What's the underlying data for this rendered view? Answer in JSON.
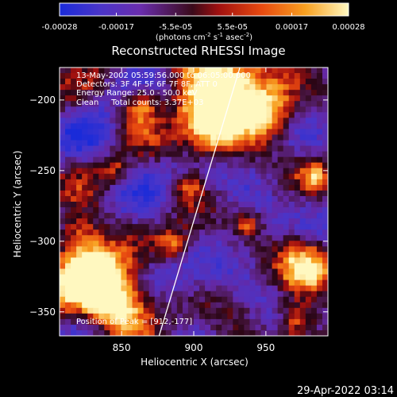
{
  "colorbar": {
    "ticks": [
      {
        "label": "-0.00028",
        "value": -0.00028
      },
      {
        "label": "-0.00017",
        "value": -0.00017
      },
      {
        "label": "-5.5e-05",
        "value": -5.5e-05
      },
      {
        "label": "5.5e-05",
        "value": 5.5e-05
      },
      {
        "label": "0.00017",
        "value": 0.00017
      },
      {
        "label": "0.00028",
        "value": 0.00028
      }
    ],
    "units_text": "(photons cm",
    "units_exp1": "-2",
    "units_mid": " s",
    "units_exp2": "-1",
    "units_end": " asec",
    "units_exp3": "-2",
    "units_close": ")",
    "range": [
      -0.00028,
      0.00028
    ],
    "colors": [
      "#1a2bd9",
      "#4a35c9",
      "#6a2dad",
      "#3a0a1a",
      "#a01010",
      "#e84a10",
      "#f8a020",
      "#fff8c0"
    ]
  },
  "chart_data": {
    "type": "heatmap",
    "title": "Reconstructed RHESSI Image",
    "xlabel": "Heliocentric X (arcsec)",
    "ylabel": "Heliocentric Y (arcsec)",
    "xlim": [
      807,
      993
    ],
    "ylim": [
      -367,
      -177
    ],
    "xticks": [
      {
        "label": "850",
        "value": 850
      },
      {
        "label": "900",
        "value": 900
      },
      {
        "label": "950",
        "value": 950
      }
    ],
    "yticks": [
      {
        "label": "−200",
        "value": -200
      },
      {
        "label": "−250",
        "value": -250
      },
      {
        "label": "−300",
        "value": -300
      },
      {
        "label": "−350",
        "value": -350
      }
    ],
    "annotations": [
      "13-May-2002 05:59:56.000 to 06:05:00.000",
      "Detectors: 3F 4F 5F 6F 7F 8F, ATT 0",
      "Energy Range: 25.0 - 50.0 keV",
      "Clean     Total counts: 3.37E+03"
    ],
    "peak_text": "Position of Peak = [912,-177]",
    "limb_line": [
      [
        876,
        -367
      ],
      [
        932,
        -177
      ]
    ]
  },
  "timestamp": "29-Apr-2022 03:14"
}
